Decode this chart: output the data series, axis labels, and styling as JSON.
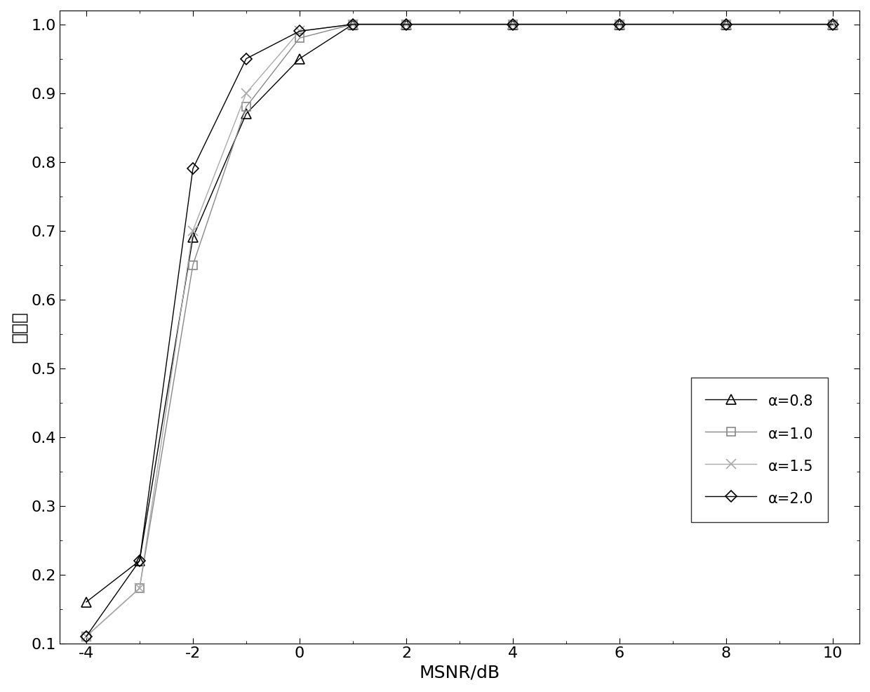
{
  "x": [
    -4,
    -3,
    -2,
    -1,
    0,
    1,
    2,
    4,
    6,
    8,
    10
  ],
  "series": [
    {
      "label": "α=0.8",
      "marker": "^",
      "color": "#000000",
      "linewidth": 1.0,
      "markersize": 9,
      "y": [
        0.16,
        0.22,
        0.69,
        0.87,
        0.95,
        1.0,
        1.0,
        1.0,
        1.0,
        1.0,
        1.0
      ]
    },
    {
      "label": "α=1.0",
      "marker": "s",
      "color": "#888888",
      "linewidth": 1.0,
      "markersize": 9,
      "y": [
        0.11,
        0.18,
        0.65,
        0.88,
        0.98,
        1.0,
        1.0,
        1.0,
        1.0,
        1.0,
        1.0
      ]
    },
    {
      "label": "α=1.5",
      "marker": "x",
      "color": "#aaaaaa",
      "linewidth": 1.0,
      "markersize": 9,
      "y": [
        0.11,
        0.18,
        0.7,
        0.9,
        0.99,
        1.0,
        1.0,
        1.0,
        1.0,
        1.0,
        1.0
      ]
    },
    {
      "label": "α=2.0",
      "marker": "D",
      "color": "#000000",
      "linewidth": 1.0,
      "markersize": 8,
      "y": [
        0.11,
        0.22,
        0.79,
        0.95,
        0.99,
        1.0,
        1.0,
        1.0,
        1.0,
        1.0,
        1.0
      ]
    }
  ],
  "xlabel": "MSNR/dB",
  "ylabel": "识别率",
  "xlim": [
    -4.5,
    10.5
  ],
  "ylim": [
    0.1,
    1.02
  ],
  "xticks": [
    -4,
    -2,
    0,
    2,
    4,
    6,
    8,
    10
  ],
  "yticks": [
    0.1,
    0.2,
    0.3,
    0.4,
    0.5,
    0.6,
    0.7,
    0.8,
    0.9,
    1.0
  ],
  "background_color": "#ffffff",
  "tick_fontsize": 16,
  "label_fontsize": 18
}
